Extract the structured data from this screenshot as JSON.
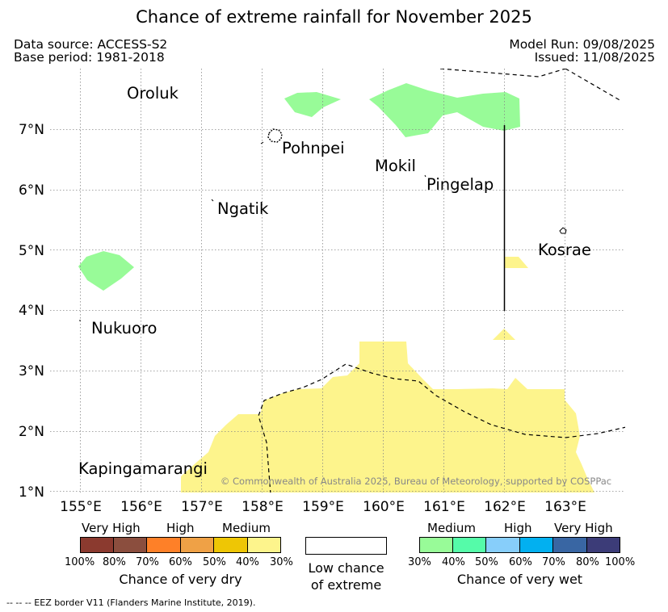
{
  "title": "Chance of extreme rainfall for November 2025",
  "header": {
    "data_source": "Data source: ACCESS-S2",
    "base_period": "Base period: 1981-2018",
    "model_run": "Model Run: 09/08/2025",
    "issued": "Issued: 11/08/2025"
  },
  "map": {
    "lon_ticks": [
      "155°E",
      "156°E",
      "157°E",
      "158°E",
      "159°E",
      "160°E",
      "161°E",
      "162°E",
      "163°E"
    ],
    "lat_ticks": [
      "7°N",
      "6°N",
      "5°N",
      "4°N",
      "3°N",
      "2°N",
      "1°N"
    ],
    "place_labels": {
      "oroluk": "Oroluk",
      "pohnpei": "Pohnpei",
      "mokil": "Mokil",
      "pingelap": "Pingelap",
      "ngatik": "Ngatik",
      "kosrae": "Kosrae",
      "nukuoro": "Nukuoro",
      "kapingamarangi": "Kapingamarangi"
    },
    "copyright": "© Commonwealth of Australia 2025, Bureau of Meteorology, supported by COSPPac",
    "colors": {
      "very_wet_medium": "#98fb98",
      "very_dry_medium": "#fdf48c",
      "grid": "#888888"
    }
  },
  "legend": {
    "dry": {
      "categories": [
        "Very High",
        "High",
        "Medium"
      ],
      "percent_labels": [
        "100%",
        "80%",
        "70%",
        "60%",
        "50%",
        "40%",
        "30%"
      ],
      "colors": [
        "#8b3a2f",
        "#8b4e3e",
        "#fe8028",
        "#efa146",
        "#eec605",
        "#fdf48c"
      ],
      "caption": "Chance of very dry"
    },
    "low": {
      "caption": "Low chance of extreme"
    },
    "wet": {
      "categories": [
        "Medium",
        "High",
        "Very High"
      ],
      "percent_labels": [
        "30%",
        "40%",
        "50%",
        "60%",
        "70%",
        "80%",
        "100%"
      ],
      "colors": [
        "#98fb98",
        "#55fba9",
        "#87cefa",
        "#02b0f0",
        "#3966a3",
        "#3c3c78"
      ],
      "caption": "Chance of very wet"
    }
  },
  "footer": {
    "eez_note": "--  --  -- EEZ border V11 (Flanders Marine Institute, 2019)."
  }
}
